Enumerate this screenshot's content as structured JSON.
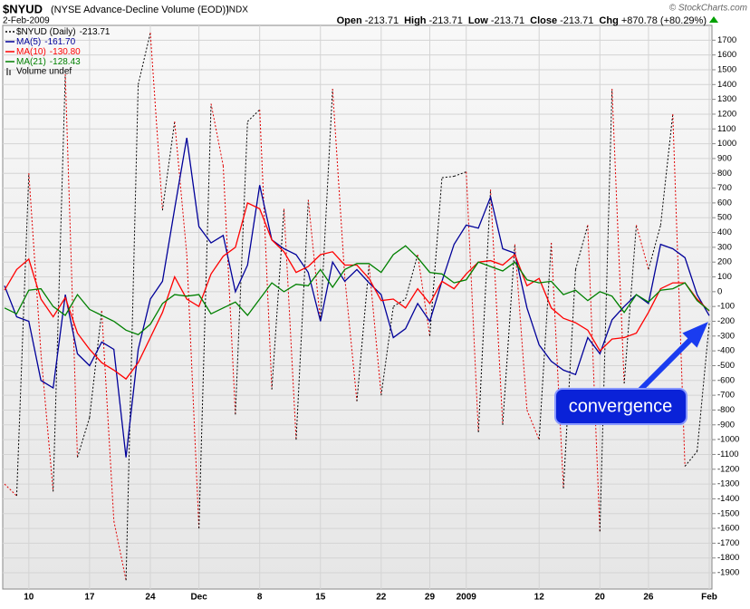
{
  "chart_data": {
    "type": "line",
    "title": "$NYUD",
    "subtitle": "(NYSE Advance-Decline Volume (EOD))",
    "exchange": "INDX",
    "date": "2-Feb-2009",
    "credit": "© StockCharts.com",
    "quote": [
      [
        "Open",
        "-213.71"
      ],
      [
        "High",
        "-213.71"
      ],
      [
        "Low",
        "-213.71"
      ],
      [
        "Close",
        "-213.71"
      ],
      [
        "Chg",
        "+870.78 (+80.29%)"
      ]
    ],
    "volume_note": "Volume undef",
    "annotation": "convergence",
    "categories": [
      null,
      null,
      "10",
      null,
      null,
      null,
      null,
      "17",
      null,
      null,
      null,
      null,
      "24",
      null,
      null,
      null,
      "Dec",
      null,
      null,
      null,
      null,
      "8",
      null,
      null,
      null,
      null,
      "15",
      null,
      null,
      null,
      null,
      "22",
      null,
      null,
      null,
      "29",
      null,
      null,
      "2009",
      null,
      null,
      null,
      null,
      null,
      "12",
      null,
      null,
      null,
      null,
      "20",
      null,
      null,
      null,
      "26",
      null,
      null,
      null,
      null,
      "Feb"
    ],
    "ylim": [
      -2010,
      1800
    ],
    "yticks": [
      -1900,
      -1800,
      -1700,
      -1600,
      -1500,
      -1400,
      -1300,
      -1200,
      -1100,
      -1000,
      -900,
      -800,
      -700,
      -600,
      -500,
      -400,
      -300,
      -200,
      -100,
      0,
      100,
      200,
      300,
      400,
      500,
      600,
      700,
      800,
      900,
      1000,
      1100,
      1200,
      1300,
      1400,
      1500,
      1600,
      1700
    ],
    "grid": true,
    "series": [
      {
        "name": "$NYUD (Daily)",
        "legend_value": "-213.71",
        "color": "#000000",
        "down_color": "#e00000",
        "style": "dotted",
        "values": [
          -1300,
          -1380,
          800,
          -420,
          -1350,
          1470,
          -1120,
          -850,
          -130,
          -1550,
          -1950,
          1400,
          1750,
          550,
          1150,
          250,
          -1600,
          1270,
          850,
          -830,
          1150,
          1230,
          -660,
          560,
          -1000,
          620,
          -200,
          1370,
          100,
          -740,
          180,
          -700,
          -100,
          -50,
          250,
          -300,
          770,
          780,
          810,
          -950,
          690,
          -900,
          320,
          -800,
          -1000,
          330,
          -1330,
          150,
          450,
          -1620,
          1370,
          -620,
          450,
          150,
          450,
          1200,
          -1180,
          -1080,
          -213.71
        ]
      },
      {
        "name": "MA(5)",
        "legend_value": "-161.70",
        "color": "#000099",
        "style": "solid",
        "values": [
          40,
          -170,
          -200,
          -600,
          -650,
          -20,
          -420,
          -500,
          -340,
          -390,
          -1120,
          -390,
          -50,
          70,
          560,
          1040,
          440,
          330,
          380,
          0,
          180,
          720,
          350,
          290,
          250,
          130,
          -200,
          200,
          70,
          150,
          60,
          -20,
          -310,
          -250,
          -80,
          -200,
          70,
          320,
          450,
          430,
          640,
          290,
          260,
          -110,
          -360,
          -470,
          -530,
          -560,
          -310,
          -420,
          -190,
          -100,
          -20,
          -80,
          320,
          290,
          230,
          -20,
          -161.7
        ]
      },
      {
        "name": "MA(10)",
        "legend_value": "-130.80",
        "color": "#ff0000",
        "style": "solid",
        "values": [
          10,
          150,
          220,
          -50,
          -170,
          -40,
          -280,
          -390,
          -480,
          -530,
          -590,
          -480,
          -310,
          -140,
          100,
          -50,
          -100,
          120,
          240,
          300,
          600,
          560,
          350,
          270,
          130,
          170,
          250,
          270,
          180,
          180,
          90,
          -60,
          -50,
          -110,
          20,
          -80,
          70,
          20,
          120,
          200,
          210,
          180,
          250,
          40,
          90,
          -110,
          -180,
          -210,
          -260,
          -400,
          -320,
          -310,
          -280,
          -140,
          20,
          60,
          60,
          -50,
          -130.8
        ]
      },
      {
        "name": "MA(21)",
        "legend_value": "-128.43",
        "color": "#008000",
        "style": "solid",
        "values": [
          -110,
          -150,
          10,
          20,
          -100,
          -160,
          -20,
          -120,
          -160,
          -200,
          -260,
          -290,
          -220,
          -80,
          -20,
          -30,
          -20,
          -150,
          -110,
          -70,
          -160,
          -50,
          60,
          0,
          50,
          40,
          150,
          30,
          150,
          190,
          190,
          130,
          250,
          310,
          230,
          130,
          120,
          60,
          80,
          200,
          170,
          140,
          200,
          80,
          60,
          70,
          -20,
          10,
          -60,
          0,
          -30,
          -140,
          -20,
          -70,
          10,
          20,
          60,
          -60,
          -128.43
        ]
      }
    ]
  }
}
